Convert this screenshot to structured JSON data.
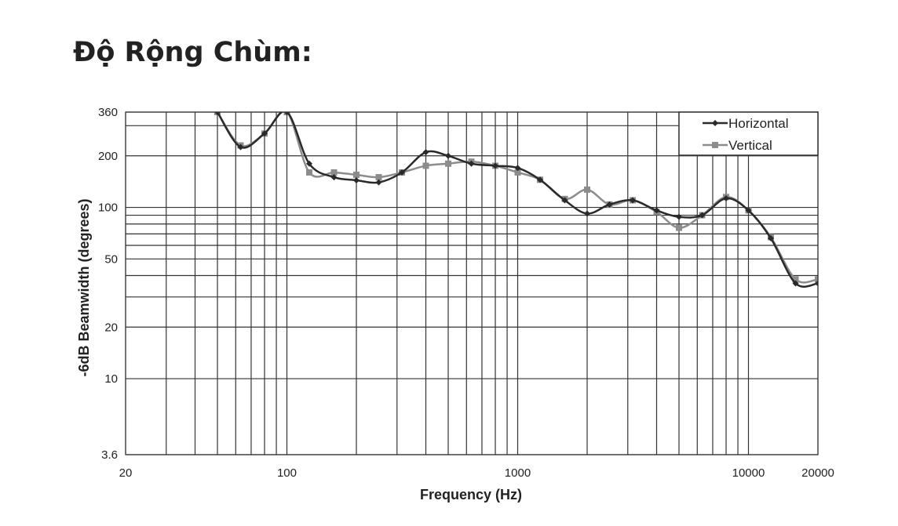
{
  "chart_data": {
    "type": "line",
    "title": "Độ Rộng Chùm:",
    "x_label": "Frequency (Hz)",
    "y_label": "-6dB Beamwidth (degrees)",
    "x": [
      50,
      63,
      80,
      100,
      125,
      160,
      200,
      250,
      315,
      400,
      500,
      630,
      800,
      1000,
      1250,
      1600,
      2000,
      2500,
      3150,
      4000,
      5000,
      6300,
      8000,
      10000,
      12500,
      16000,
      20000
    ],
    "series": [
      {
        "name": "Horizontal",
        "color": "#2a2a2a",
        "marker": "diamond",
        "values": [
          360,
          225,
          270,
          360,
          180,
          150,
          144,
          140,
          160,
          210,
          200,
          180,
          175,
          170,
          145,
          110,
          92,
          104,
          110,
          96,
          88,
          90,
          113,
          96,
          66,
          36,
          36
        ]
      },
      {
        "name": "Vertical",
        "color": "#8c8c8c",
        "marker": "square",
        "values": [
          360,
          230,
          270,
          360,
          160,
          160,
          155,
          150,
          160,
          175,
          180,
          185,
          175,
          160,
          145,
          112,
          127,
          104,
          110,
          94,
          76,
          90,
          115,
          96,
          67,
          38,
          38
        ]
      }
    ],
    "xlim": [
      20,
      20000
    ],
    "ylim": [
      3.6,
      360
    ],
    "xticks": [
      20,
      100,
      1000,
      10000,
      20000
    ],
    "yticks": [
      3.6,
      10,
      20,
      50,
      100,
      200,
      360
    ],
    "xminor": [
      30,
      40,
      50,
      60,
      70,
      80,
      90,
      200,
      300,
      400,
      500,
      600,
      700,
      800,
      900,
      2000,
      3000,
      4000,
      5000,
      6000,
      7000,
      8000,
      9000
    ],
    "yminor": [
      30,
      40,
      60,
      70,
      80,
      90,
      300
    ],
    "log_x": true,
    "log_y": true,
    "grid": true,
    "legend": "upper right"
  }
}
